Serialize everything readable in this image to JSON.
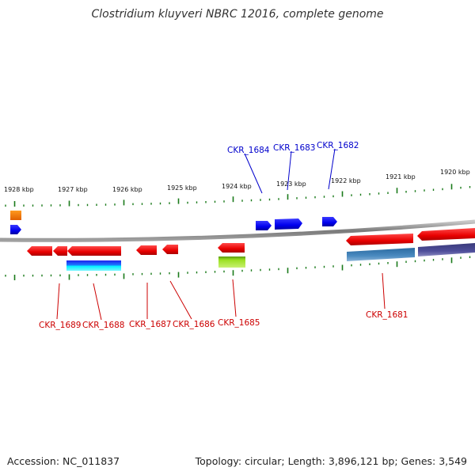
{
  "title": "Clostridium kluyveri NBRC 12016, complete genome",
  "footer": {
    "accession": "Accession: NC_011837",
    "summary": "Topology: circular; Length: 3,896,121 bp; Genes: 3,549"
  },
  "scale": {
    "unit": "kbp",
    "ticks": [
      "1928 kbp",
      "1927 kbp",
      "1926 kbp",
      "1925 kbp",
      "1924 kbp",
      "1923 kbp",
      "1922 kbp",
      "1921 kbp",
      "1920 kbp"
    ]
  },
  "genes": {
    "top": [
      "CKR_1684",
      "CKR_1683",
      "CKR_1682"
    ],
    "bottom": [
      "CKR_1689",
      "CKR_1688",
      "CKR_1687",
      "CKR_1686",
      "CKR_1685",
      "CKR_1681"
    ]
  },
  "colors": {
    "forward_gene": "#0000ee",
    "reverse_gene": "#ee0000",
    "backbone": "#808080",
    "ticks": "#1a7a1a"
  }
}
